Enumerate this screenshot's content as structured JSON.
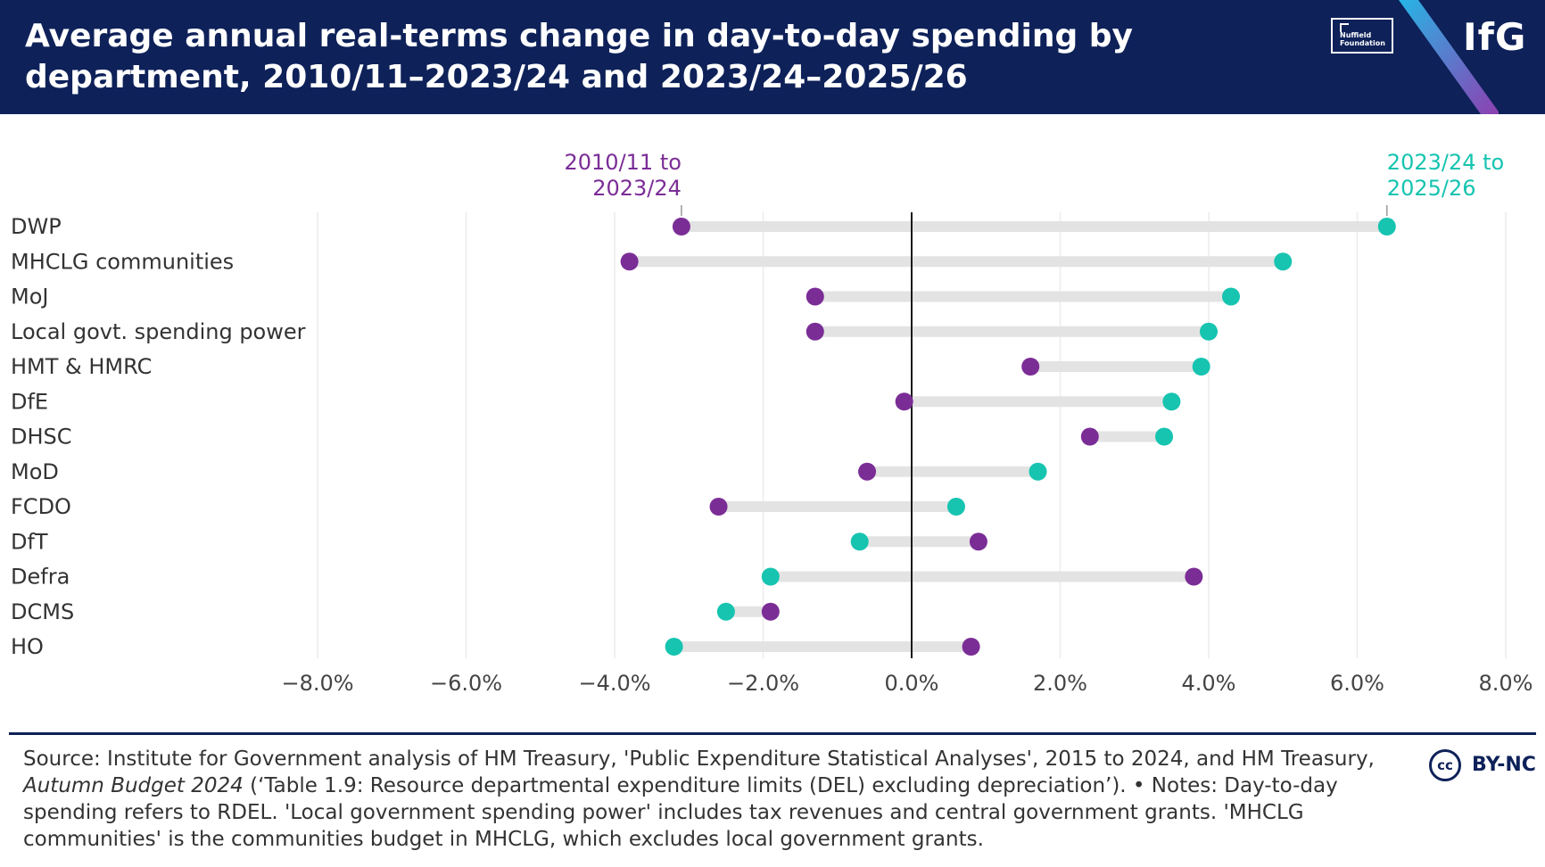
{
  "header": {
    "title": "Average annual real-terms change in day-to-day spending by department, 2010/11–2023/24 and 2023/24–2025/26",
    "logo_nuffield_line1": "Nuffield",
    "logo_nuffield_line2": "Foundation",
    "logo_ifg": "IfG"
  },
  "colors": {
    "header_bg": "#0e2159",
    "series_2010": "#7b2d96",
    "series_2023": "#16c4b0",
    "range_bar": "#e3e3e3",
    "grid": "#ececec",
    "zero_line": "#1a1a1a"
  },
  "chart_data": {
    "type": "dumbbell",
    "title": "Average annual real-terms change in day-to-day spending by department, 2010/11–2023/24 and 2023/24–2025/26",
    "xlabel": "",
    "ylabel": "",
    "xlim": [
      -8,
      8
    ],
    "x_ticks": [
      -8,
      -6,
      -4,
      -2,
      0,
      2,
      4,
      6,
      8
    ],
    "x_tick_labels": [
      "−8.0%",
      "−6.0%",
      "−4.0%",
      "−2.0%",
      "0.0%",
      "2.0%",
      "4.0%",
      "6.0%",
      "8.0%"
    ],
    "grid": true,
    "categories": [
      "DWP",
      "MHCLG communities",
      "MoJ",
      "Local govt. spending power",
      "HMT & HMRC",
      "DfE",
      "DHSC",
      "MoD",
      "FCDO",
      "DfT",
      "Defra",
      "DCMS",
      "HO"
    ],
    "series": [
      {
        "name": "2010/11 to 2023/24",
        "label_lines": [
          "2010/11 to",
          "2023/24"
        ],
        "values": [
          -3.1,
          -3.8,
          -1.3,
          -1.3,
          1.6,
          -0.1,
          2.4,
          -0.6,
          -2.6,
          0.9,
          3.8,
          -1.9,
          0.8
        ]
      },
      {
        "name": "2023/24 to 2025/26",
        "label_lines": [
          "2023/24 to",
          "2025/26"
        ],
        "values": [
          6.4,
          5.0,
          4.3,
          4.0,
          3.9,
          3.5,
          3.4,
          1.7,
          0.6,
          -0.7,
          -1.9,
          -2.5,
          -3.2
        ]
      }
    ]
  },
  "footer": {
    "source_1": "Source: Institute for Government analysis of HM Treasury, 'Public Expenditure Statistical Analyses', 2015 to 2024, and HM Treasury, ",
    "source_italic": "Autumn Budget 2024",
    "source_2": " (‘Table 1.9: Resource departmental expenditure limits (DEL) excluding depreciation’). • Notes: Day-to-day spending refers to RDEL. 'Local government spending power' includes tax revenues and central government grants. 'MHCLG communities' is the communities budget in MHCLG, which excludes local government grants.",
    "license_icon": "cc",
    "license": "BY-NC"
  }
}
